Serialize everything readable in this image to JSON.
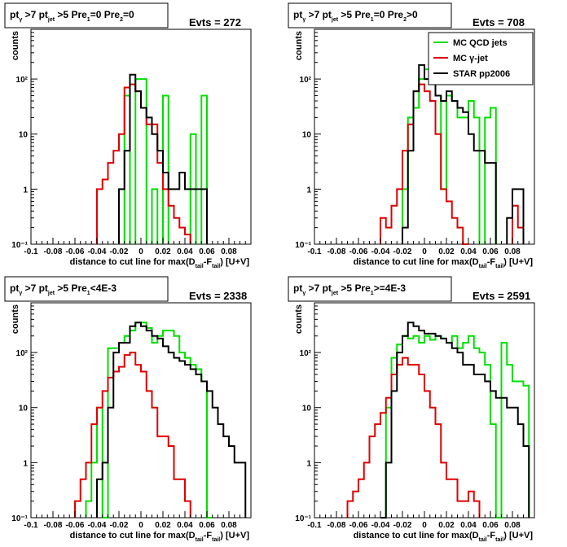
{
  "chart_data": [
    {
      "type": "histogram",
      "title": {
        "main": "pt",
        "s1": "γ",
        "m1": " >7  pt",
        "s2": "jet",
        "m2": " >5 Pre",
        "s3": "1",
        "m3": "=0 Pre",
        "s4": "2",
        "m4": "=0"
      },
      "evts": "Evts = 272",
      "xlabel": {
        "main": "distance to cut line for max(D",
        "s1": "tail",
        "m1": "-F",
        "s2": "tail",
        "m2": ") [U+V]"
      },
      "ylabel": "counts",
      "xlim": [
        -0.1,
        0.1
      ],
      "ylim": [
        0.1,
        800
      ],
      "y_scale": "log",
      "xticks": [
        "-0.1",
        "-0.08",
        "-0.06",
        "-0.04",
        "-0.02",
        "0",
        "0.02",
        "0.04",
        "0.06",
        "0.08"
      ],
      "yticks": [
        "1",
        "10",
        "10²",
        "10⁻¹"
      ],
      "bin_edges": [
        -0.1,
        -0.095,
        -0.09,
        -0.085,
        -0.08,
        -0.075,
        -0.07,
        -0.065,
        -0.06,
        -0.055,
        -0.05,
        -0.045,
        -0.04,
        -0.035,
        -0.03,
        -0.025,
        -0.02,
        -0.015,
        -0.01,
        -0.005,
        0,
        0.005,
        0.01,
        0.015,
        0.02,
        0.025,
        0.03,
        0.035,
        0.04,
        0.045,
        0.05,
        0.055,
        0.06,
        0.065,
        0.07,
        0.075,
        0.08,
        0.085,
        0.09,
        0.095,
        0.1
      ],
      "series": [
        {
          "name": "MC QCD jets",
          "color": "#00e000",
          "values": [
            0,
            0,
            0,
            0,
            0,
            0,
            0,
            0,
            0,
            0,
            0,
            0,
            0,
            0,
            0,
            0,
            0,
            50,
            0,
            100,
            100,
            0,
            1,
            0,
            50,
            0,
            0,
            0,
            0,
            10,
            0,
            50,
            0,
            0,
            0,
            0,
            0,
            0,
            0,
            0
          ]
        },
        {
          "name": "MC γ-jet",
          "color": "#e00000",
          "values": [
            0,
            0,
            0,
            0,
            0,
            0,
            0,
            0,
            0,
            0,
            0,
            0,
            1,
            1.5,
            3,
            5,
            10,
            70,
            80,
            60,
            30,
            15,
            15,
            3,
            1,
            0.5,
            0.3,
            0.2,
            0.15,
            0,
            0,
            0,
            0,
            0,
            0,
            0,
            0,
            0,
            0,
            0
          ]
        },
        {
          "name": "STAR pp2006",
          "color": "#000000",
          "values": [
            0,
            0,
            0,
            0,
            0,
            0,
            0,
            0,
            0,
            0,
            0,
            0,
            0,
            0,
            0,
            0,
            1,
            5,
            120,
            60,
            30,
            20,
            10,
            5,
            2,
            1,
            1,
            2,
            1,
            1,
            1,
            1,
            0,
            0,
            0,
            0,
            0,
            0,
            0,
            0
          ]
        }
      ]
    },
    {
      "type": "histogram",
      "title": {
        "main": "pt",
        "s1": "γ",
        "m1": " >7  pt",
        "s2": "jet",
        "m2": " >5 Pre",
        "s3": "1",
        "m3": "=0 Pre",
        "s4": "2",
        "m4": ">0"
      },
      "evts": "Evts = 708",
      "xlabel": {
        "main": "distance to cut line for max(D",
        "s1": "tail",
        "m1": "-F",
        "s2": "tail",
        "m2": ") [U+V]"
      },
      "ylabel": "counts",
      "xlim": [
        -0.1,
        0.1
      ],
      "ylim": [
        0.1,
        800
      ],
      "y_scale": "log",
      "xticks": [
        "-0.1",
        "-0.08",
        "-0.06",
        "-0.04",
        "-0.02",
        "0",
        "0.02",
        "0.04",
        "0.06",
        "0.08"
      ],
      "yticks": [
        "1",
        "10",
        "10²",
        "10⁻¹"
      ],
      "legend": {
        "position": "top-right",
        "entries": [
          "MC QCD jets",
          "MC γ-jet",
          "STAR pp2006"
        ]
      },
      "bin_edges": [
        -0.1,
        -0.095,
        -0.09,
        -0.085,
        -0.08,
        -0.075,
        -0.07,
        -0.065,
        -0.06,
        -0.055,
        -0.05,
        -0.045,
        -0.04,
        -0.035,
        -0.03,
        -0.025,
        -0.02,
        -0.015,
        -0.01,
        -0.005,
        0,
        0.005,
        0.01,
        0.015,
        0.02,
        0.025,
        0.03,
        0.035,
        0.04,
        0.045,
        0.05,
        0.055,
        0.06,
        0.065,
        0.07,
        0.075,
        0.08,
        0.085,
        0.09,
        0.095,
        0.1
      ],
      "series": [
        {
          "name": "MC QCD jets",
          "color": "#00e000",
          "values": [
            0,
            0,
            0,
            0,
            0,
            0,
            0,
            0,
            0,
            0,
            0,
            0,
            0,
            0,
            0,
            0,
            1,
            20,
            30,
            100,
            150,
            120,
            50,
            1,
            50,
            40,
            20,
            20,
            40,
            20,
            0,
            20,
            30,
            0,
            0,
            0,
            0,
            0,
            0,
            0
          ]
        },
        {
          "name": "MC γ-jet",
          "color": "#e00000",
          "values": [
            0,
            0,
            0,
            0,
            0,
            0,
            0,
            0,
            0,
            0,
            0,
            0,
            0.3,
            0.2,
            0.5,
            1,
            5,
            15,
            60,
            80,
            60,
            40,
            10,
            1,
            0.6,
            0.3,
            0.2,
            0.1,
            0,
            0,
            0,
            0,
            0,
            0,
            0,
            0,
            0.5,
            0.2,
            0,
            0
          ]
        },
        {
          "name": "STAR pp2006",
          "color": "#000000",
          "values": [
            0,
            0,
            0,
            0,
            0,
            0,
            0,
            0,
            0,
            0,
            0,
            0,
            0,
            0,
            0,
            0,
            0.2,
            5,
            60,
            180,
            100,
            100,
            50,
            40,
            60,
            40,
            30,
            25,
            10,
            5,
            5,
            3,
            3,
            0,
            0,
            0.3,
            1,
            1,
            0,
            0
          ]
        }
      ]
    },
    {
      "type": "histogram",
      "title": {
        "main": "pt",
        "s1": "γ",
        "m1": " >7  pt",
        "s2": "jet",
        "m2": " >5 Pre",
        "s3": "1",
        "m3": "<4E-3",
        "s4": "",
        "m4": ""
      },
      "evts": "Evts = 2338",
      "xlabel": {
        "main": "distance to cut line for max(D",
        "s1": "tail",
        "m1": "-F",
        "s2": "tail",
        "m2": ") [U+V]"
      },
      "ylabel": "counts",
      "xlim": [
        -0.1,
        0.1
      ],
      "ylim": [
        0.1,
        800
      ],
      "y_scale": "log",
      "xticks": [
        "-0.1",
        "-0.08",
        "-0.06",
        "-0.04",
        "-0.02",
        "0",
        "0.02",
        "0.04",
        "0.06",
        "0.08"
      ],
      "yticks": [
        "1",
        "10",
        "10²",
        "10⁻¹"
      ],
      "bin_edges": [
        -0.1,
        -0.095,
        -0.09,
        -0.085,
        -0.08,
        -0.075,
        -0.07,
        -0.065,
        -0.06,
        -0.055,
        -0.05,
        -0.045,
        -0.04,
        -0.035,
        -0.03,
        -0.025,
        -0.02,
        -0.015,
        -0.01,
        -0.005,
        0,
        0.005,
        0.01,
        0.015,
        0.02,
        0.025,
        0.03,
        0.035,
        0.04,
        0.045,
        0.05,
        0.055,
        0.06,
        0.065,
        0.07,
        0.075,
        0.08,
        0.085,
        0.09,
        0.095,
        0.1
      ],
      "series": [
        {
          "name": "MC QCD jets",
          "color": "#00e000",
          "values": [
            0,
            0,
            0,
            0,
            0,
            0,
            0,
            0,
            0,
            0,
            0.2,
            1,
            10,
            0.1,
            120,
            120,
            150,
            200,
            250,
            350,
            350,
            280,
            150,
            200,
            250,
            250,
            200,
            100,
            80,
            60,
            50,
            30,
            0.1,
            0,
            0,
            0,
            0,
            0,
            0,
            0
          ]
        },
        {
          "name": "MC γ-jet",
          "color": "#e00000",
          "values": [
            0,
            0,
            0,
            0,
            0,
            0,
            0,
            0,
            0.2,
            0.5,
            1,
            5,
            10,
            20,
            35,
            45,
            55,
            90,
            100,
            60,
            45,
            20,
            10,
            3,
            3,
            2,
            0.5,
            0.5,
            0.2,
            0,
            0,
            0,
            0,
            0,
            0,
            0,
            0,
            0,
            0,
            0
          ]
        },
        {
          "name": "STAR pp2006",
          "color": "#000000",
          "values": [
            0,
            0,
            0,
            0,
            0,
            0,
            0,
            0,
            0,
            0,
            0,
            0,
            0.5,
            1,
            10,
            100,
            150,
            150,
            300,
            350,
            300,
            250,
            200,
            180,
            130,
            100,
            80,
            70,
            60,
            50,
            40,
            30,
            20,
            10,
            5,
            3,
            2,
            1,
            1,
            0
          ]
        }
      ]
    },
    {
      "type": "histogram",
      "title": {
        "main": "pt",
        "s1": "γ",
        "m1": " >7  pt",
        "s2": "jet",
        "m2": " >5 Pre",
        "s3": "1",
        "m3": ">=4E-3",
        "s4": "",
        "m4": ""
      },
      "evts": "Evts = 2591",
      "xlabel": {
        "main": "distance to cut line for max(D",
        "s1": "tail",
        "m1": "-F",
        "s2": "tail",
        "m2": ") [U+V]"
      },
      "ylabel": "counts",
      "xlim": [
        -0.1,
        0.1
      ],
      "ylim": [
        0.1,
        800
      ],
      "y_scale": "log",
      "xticks": [
        "-0.1",
        "-0.08",
        "-0.06",
        "-0.04",
        "-0.02",
        "0",
        "0.02",
        "0.04",
        "0.06",
        "0.08"
      ],
      "yticks": [
        "1",
        "10",
        "10²",
        "10⁻¹"
      ],
      "bin_edges": [
        -0.1,
        -0.095,
        -0.09,
        -0.085,
        -0.08,
        -0.075,
        -0.07,
        -0.065,
        -0.06,
        -0.055,
        -0.05,
        -0.045,
        -0.04,
        -0.035,
        -0.03,
        -0.025,
        -0.02,
        -0.015,
        -0.01,
        -0.005,
        0,
        0.005,
        0.01,
        0.015,
        0.02,
        0.025,
        0.03,
        0.035,
        0.04,
        0.045,
        0.05,
        0.055,
        0.06,
        0.065,
        0.07,
        0.075,
        0.08,
        0.085,
        0.09,
        0.095,
        0.1
      ],
      "series": [
        {
          "name": "MC QCD jets",
          "color": "#00e000",
          "values": [
            0,
            0,
            0,
            0,
            0,
            0,
            0,
            0,
            0,
            0,
            0,
            0,
            0.1,
            10,
            80,
            140,
            200,
            180,
            200,
            150,
            200,
            170,
            200,
            180,
            150,
            200,
            120,
            150,
            200,
            120,
            100,
            60,
            5,
            0.1,
            150,
            60,
            30,
            30,
            25,
            0
          ]
        },
        {
          "name": "MC γ-jet",
          "color": "#e00000",
          "values": [
            0,
            0,
            0,
            0,
            0,
            0,
            0.2,
            0.3,
            0.5,
            1,
            3,
            5,
            8,
            15,
            40,
            60,
            80,
            60,
            60,
            40,
            20,
            10,
            5,
            1,
            0.5,
            0.5,
            0.2,
            0.2,
            0.3,
            0.2,
            0,
            0,
            0,
            0,
            0,
            0,
            0,
            0,
            0,
            0
          ]
        },
        {
          "name": "STAR pp2006",
          "color": "#000000",
          "values": [
            0,
            0,
            0,
            0,
            0,
            0,
            0,
            0,
            0,
            0,
            0,
            0,
            0.1,
            1,
            20,
            100,
            200,
            350,
            300,
            250,
            220,
            220,
            200,
            180,
            150,
            120,
            100,
            60,
            60,
            40,
            40,
            30,
            20,
            15,
            15,
            10,
            10,
            5,
            2,
            0
          ]
        }
      ]
    }
  ]
}
